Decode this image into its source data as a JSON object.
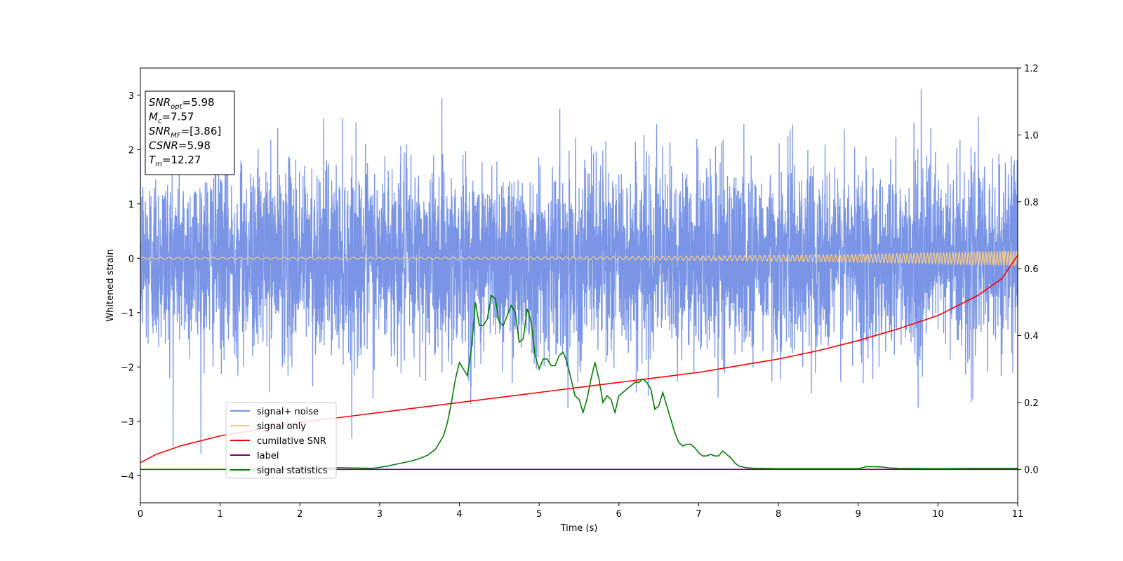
{
  "chart_data": {
    "type": "line",
    "xlabel": "Time (s)",
    "ylabel": "Whitened strain",
    "xlim": [
      0,
      11
    ],
    "ylim": [
      -4.5,
      3.5
    ],
    "y2lim": [
      -0.1,
      1.2
    ],
    "xticks": [
      "0",
      "1",
      "2",
      "3",
      "4",
      "5",
      "6",
      "7",
      "8",
      "9",
      "10",
      "11"
    ],
    "yticks": [
      "3",
      "2",
      "1",
      "0",
      "−1",
      "−2",
      "−3",
      "−4"
    ],
    "y2ticks": [
      "1.2",
      "1.0",
      "0.8",
      "0.6",
      "0.4",
      "0.2",
      "0.0"
    ],
    "grid": false,
    "legend_position": "lower-left",
    "info_box": [
      {
        "main": "SNR",
        "sub": "opt",
        "rest": "=5.98"
      },
      {
        "main": "M",
        "sub": "c",
        "rest": "=7.57"
      },
      {
        "main": "SNR",
        "sub": "MF",
        "rest": "=[3.86]"
      },
      {
        "main": "CSNR",
        "sub": "",
        "rest": "=5.98"
      },
      {
        "main": "T",
        "sub": "m",
        "rest": "=12.27"
      }
    ],
    "series": [
      {
        "name": "signal+ noise",
        "color": "#7a95e6",
        "axis": "left",
        "noise_amplitude": 1.1,
        "noise_range": [
          -4.15,
          3.2
        ]
      },
      {
        "name": "signal only",
        "color": "#f5c985",
        "axis": "left",
        "chirp": {
          "a0": 0.02,
          "a1": 0.14,
          "f0": 9,
          "f1": 30
        }
      },
      {
        "name": "cumilative SNR",
        "color": "#ff0000",
        "axis": "right",
        "x": [
          0,
          0.2,
          0.5,
          1,
          1.5,
          2,
          2.5,
          3,
          3.5,
          4,
          4.5,
          5,
          5.5,
          6,
          6.5,
          7,
          7.5,
          8,
          8.5,
          9,
          9.5,
          10,
          10.5,
          10.8,
          11
        ],
        "y": [
          0.02,
          0.045,
          0.07,
          0.1,
          0.12,
          0.14,
          0.155,
          0.17,
          0.185,
          0.2,
          0.215,
          0.23,
          0.245,
          0.26,
          0.275,
          0.29,
          0.31,
          0.33,
          0.355,
          0.385,
          0.42,
          0.46,
          0.52,
          0.57,
          0.64
        ]
      },
      {
        "name": "label",
        "color": "#800080",
        "axis": "right",
        "x": [
          0,
          11
        ],
        "y": [
          0,
          0
        ]
      },
      {
        "name": "signal statistics",
        "color": "#008000",
        "axis": "right",
        "x": [
          0,
          0.5,
          1,
          1.5,
          2,
          2.5,
          2.9,
          3.0,
          3.1,
          3.2,
          3.3,
          3.4,
          3.5,
          3.6,
          3.7,
          3.8,
          3.85,
          3.9,
          3.95,
          4.0,
          4.05,
          4.1,
          4.15,
          4.2,
          4.25,
          4.3,
          4.35,
          4.4,
          4.45,
          4.5,
          4.55,
          4.6,
          4.65,
          4.7,
          4.75,
          4.8,
          4.85,
          4.9,
          4.95,
          5.0,
          5.05,
          5.1,
          5.15,
          5.2,
          5.25,
          5.3,
          5.35,
          5.4,
          5.45,
          5.5,
          5.55,
          5.6,
          5.65,
          5.7,
          5.75,
          5.8,
          5.85,
          5.9,
          5.95,
          6.0,
          6.05,
          6.1,
          6.15,
          6.2,
          6.25,
          6.3,
          6.35,
          6.4,
          6.45,
          6.5,
          6.55,
          6.6,
          6.65,
          6.7,
          6.75,
          6.8,
          6.85,
          6.9,
          6.95,
          7.0,
          7.05,
          7.1,
          7.15,
          7.2,
          7.25,
          7.3,
          7.35,
          7.4,
          7.45,
          7.5,
          7.6,
          7.7,
          7.8,
          8.0,
          8.5,
          9.0,
          9.1,
          9.2,
          9.3,
          9.4,
          9.5,
          10,
          10.5,
          11
        ],
        "y": [
          0.0,
          0.0,
          0.0,
          0.0,
          0.005,
          0.005,
          0.003,
          0.006,
          0.01,
          0.015,
          0.02,
          0.025,
          0.032,
          0.042,
          0.06,
          0.1,
          0.14,
          0.2,
          0.27,
          0.32,
          0.3,
          0.28,
          0.36,
          0.5,
          0.43,
          0.43,
          0.45,
          0.52,
          0.51,
          0.44,
          0.43,
          0.46,
          0.49,
          0.47,
          0.38,
          0.39,
          0.48,
          0.44,
          0.34,
          0.3,
          0.33,
          0.33,
          0.31,
          0.31,
          0.34,
          0.35,
          0.32,
          0.27,
          0.22,
          0.21,
          0.17,
          0.21,
          0.27,
          0.32,
          0.27,
          0.2,
          0.22,
          0.21,
          0.17,
          0.22,
          0.23,
          0.24,
          0.25,
          0.26,
          0.26,
          0.27,
          0.26,
          0.24,
          0.18,
          0.19,
          0.23,
          0.19,
          0.15,
          0.11,
          0.08,
          0.07,
          0.075,
          0.075,
          0.065,
          0.05,
          0.04,
          0.04,
          0.045,
          0.04,
          0.04,
          0.055,
          0.045,
          0.035,
          0.02,
          0.01,
          0.005,
          0.003,
          0.003,
          0.002,
          0.002,
          0.002,
          0.008,
          0.008,
          0.007,
          0.004,
          0.003,
          0.002,
          0.003,
          0.003
        ]
      }
    ]
  }
}
